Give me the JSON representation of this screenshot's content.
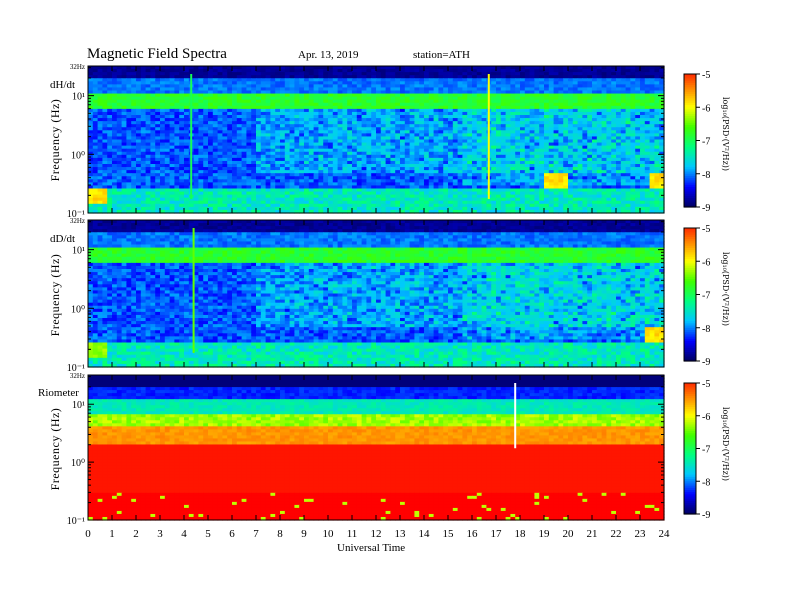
{
  "header": {
    "title": "Magnetic  Field  Spectra",
    "date": "Apr. 13, 2019",
    "station": "station=ATH"
  },
  "x_axis": {
    "label": "Universal Time",
    "ticks": [
      "0",
      "1",
      "2",
      "3",
      "4",
      "5",
      "6",
      "7",
      "8",
      "9",
      "10",
      "11",
      "12",
      "13",
      "14",
      "15",
      "16",
      "17",
      "18",
      "19",
      "20",
      "21",
      "22",
      "23",
      "24"
    ]
  },
  "panels": [
    {
      "name": "dH/dt",
      "ylabel": "Frequency  (Hz)",
      "top_label": "32Hz",
      "y_tick_labels": [
        "10¹",
        "10⁰",
        "10⁻¹"
      ],
      "colorbar_label": "log₁₀(PSD·(V²/Hz))",
      "colorbar_ticks": [
        "-5",
        "-6",
        "-7",
        "-8",
        "-9"
      ]
    },
    {
      "name": "dD/dt",
      "ylabel": "Frequency  (Hz)",
      "top_label": "32Hz",
      "y_tick_labels": [
        "10¹",
        "10⁰",
        "10⁻¹"
      ],
      "colorbar_label": "log₁₀(PSD·(V²/Hz))",
      "colorbar_ticks": [
        "-5",
        "-6",
        "-7",
        "-8",
        "-9"
      ]
    },
    {
      "name": "Riometer",
      "ylabel": "Frequency  (Hz)",
      "top_label": "32Hz",
      "y_tick_labels": [
        "10¹",
        "10⁰",
        "10⁻¹"
      ],
      "colorbar_label": "log₁₀(PSD·(V²/Hz))",
      "colorbar_ticks": [
        "-5",
        "-6",
        "-7",
        "-8",
        "-9"
      ]
    }
  ],
  "chart_data": [
    {
      "type": "heatmap",
      "title": "dH/dt",
      "xlabel": "Universal Time",
      "ylabel": "Frequency  (Hz)",
      "xlim": [
        0,
        24
      ],
      "ylim": [
        0.1,
        32
      ],
      "yscale": "log",
      "clim": [
        -9,
        -5
      ],
      "colormap": [
        "#000060",
        "#0000ff",
        "#00c8ff",
        "#00ff80",
        "#40ff00",
        "#ffff00",
        "#ff8000",
        "#ff0000",
        "#ffe0e0",
        "#ffffff"
      ],
      "features": [
        {
          "kind": "band",
          "f_low": 7,
          "f_high": 10,
          "level": -7
        },
        {
          "kind": "spike",
          "t": 16.7,
          "level": -6
        },
        {
          "kind": "spike",
          "t": 4.3,
          "level": -7
        },
        {
          "kind": "patch",
          "t_start": 19.0,
          "t_end": 20.0,
          "f": 0.35,
          "level": -6
        },
        {
          "kind": "patch",
          "t_start": 23.4,
          "t_end": 24.0,
          "f": 0.35,
          "level": -6
        },
        {
          "kind": "patch",
          "t_start": 0.0,
          "t_end": 0.8,
          "f": 0.2,
          "level": -6
        }
      ]
    },
    {
      "type": "heatmap",
      "title": "dD/dt",
      "xlabel": "Universal Time",
      "ylabel": "Frequency  (Hz)",
      "xlim": [
        0,
        24
      ],
      "ylim": [
        0.1,
        32
      ],
      "yscale": "log",
      "clim": [
        -9,
        -5
      ],
      "colormap": [
        "#000060",
        "#0000ff",
        "#00c8ff",
        "#00ff80",
        "#40ff00",
        "#ffff00",
        "#ff8000",
        "#ff0000",
        "#ffe0e0",
        "#ffffff"
      ],
      "features": [
        {
          "kind": "band",
          "f_low": 7,
          "f_high": 10,
          "level": -7
        },
        {
          "kind": "spike",
          "t": 4.4,
          "level": -6.5
        },
        {
          "kind": "patch",
          "t_start": 23.3,
          "t_end": 24.0,
          "f": 0.35,
          "level": -6
        },
        {
          "kind": "patch",
          "t_start": 0.0,
          "t_end": 0.8,
          "f": 0.2,
          "level": -6.5
        }
      ]
    },
    {
      "type": "heatmap",
      "title": "Riometer",
      "xlabel": "Universal Time",
      "ylabel": "Frequency  (Hz)",
      "xlim": [
        0,
        24
      ],
      "ylim": [
        0.1,
        32
      ],
      "yscale": "log",
      "clim": [
        -9,
        -5
      ],
      "colormap": [
        "#000060",
        "#0000ff",
        "#00c8ff",
        "#00ff80",
        "#40ff00",
        "#ffff00",
        "#ff8000",
        "#ff0000",
        "#ffe0e0",
        "#ffffff"
      ],
      "features": [
        {
          "kind": "spike",
          "t": 17.8,
          "level": -4.5
        }
      ]
    }
  ]
}
